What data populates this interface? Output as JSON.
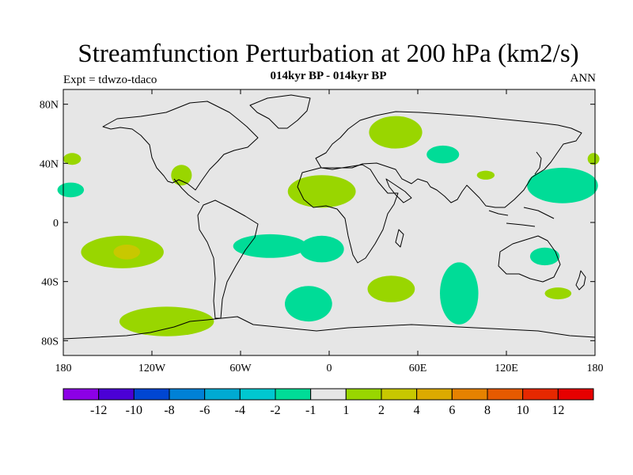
{
  "title": "Streamfunction Perturbation at 200 hPa (km2/s)",
  "subtitle": "014kyr BP - 014kyr BP",
  "left_label": "Expt = tdwzo-tdaco",
  "right_label": "ANN",
  "map": {
    "projection": "cylindrical-equidistant",
    "lon_range": [
      -180,
      180
    ],
    "lat_range": [
      -90,
      90
    ],
    "lat_ticks": [
      {
        "value": 80,
        "label": "80N"
      },
      {
        "value": 40,
        "label": "40N"
      },
      {
        "value": 0,
        "label": "0"
      },
      {
        "value": -40,
        "label": "40S"
      },
      {
        "value": -80,
        "label": "80S"
      }
    ],
    "lon_ticks": [
      {
        "value": -180,
        "label": "180"
      },
      {
        "value": -120,
        "label": "120W"
      },
      {
        "value": -60,
        "label": "60W"
      },
      {
        "value": 0,
        "label": "0"
      },
      {
        "value": 60,
        "label": "60E"
      },
      {
        "value": 120,
        "label": "120E"
      },
      {
        "value": 180,
        "label": "180"
      }
    ],
    "background_color": "#e6e6e6",
    "features": [
      {
        "lon": -174,
        "lat": 43,
        "rx": 6,
        "ry": 4,
        "level": "1 to 2",
        "color": "#99d600"
      },
      {
        "lon": -175,
        "lat": 22,
        "rx": 9,
        "ry": 5,
        "level": "-2 to -1",
        "color": "#00dc97"
      },
      {
        "lon": -100,
        "lat": 32,
        "rx": 7,
        "ry": 7,
        "level": "1 to 2",
        "color": "#99d600"
      },
      {
        "lon": -140,
        "lat": -20,
        "rx": 28,
        "ry": 11,
        "level": "1 to 2",
        "color": "#99d600"
      },
      {
        "lon": -137,
        "lat": -20,
        "rx": 9,
        "ry": 5,
        "level": "2 to 4",
        "color": "#c8c800"
      },
      {
        "lon": -110,
        "lat": -67,
        "rx": 32,
        "ry": 10,
        "level": "1 to 2",
        "color": "#99d600"
      },
      {
        "lon": -5,
        "lat": 21,
        "rx": 23,
        "ry": 11,
        "level": "1 to 2",
        "color": "#99d600"
      },
      {
        "lon": -40,
        "lat": -16,
        "rx": 25,
        "ry": 8,
        "level": "-2 to -1",
        "color": "#00dc97"
      },
      {
        "lon": -5,
        "lat": -18,
        "rx": 15,
        "ry": 9,
        "level": "-2 to -1",
        "color": "#00dc97"
      },
      {
        "lon": -14,
        "lat": -55,
        "rx": 16,
        "ry": 12,
        "level": "-2 to -1",
        "color": "#00dc97"
      },
      {
        "lon": 42,
        "lat": -45,
        "rx": 16,
        "ry": 9,
        "level": "1 to 2",
        "color": "#99d600"
      },
      {
        "lon": 45,
        "lat": 61,
        "rx": 18,
        "ry": 11,
        "level": "1 to 2",
        "color": "#99d600"
      },
      {
        "lon": 77,
        "lat": 46,
        "rx": 11,
        "ry": 6,
        "level": "-2 to -1",
        "color": "#00dc97"
      },
      {
        "lon": 106,
        "lat": 32,
        "rx": 6,
        "ry": 3,
        "level": "1 to 2",
        "color": "#99d600"
      },
      {
        "lon": 158,
        "lat": 25,
        "rx": 24,
        "ry": 12,
        "level": "-2 to -1",
        "color": "#00dc97"
      },
      {
        "lon": 179,
        "lat": 43,
        "rx": 4,
        "ry": 4,
        "level": "1 to 2",
        "color": "#99d600"
      },
      {
        "lon": 88,
        "lat": -48,
        "rx": 13,
        "ry": 21,
        "level": "-2 to -1",
        "color": "#00dc97"
      },
      {
        "lon": 146,
        "lat": -23,
        "rx": 10,
        "ry": 6,
        "level": "-2 to -1",
        "color": "#00dc97"
      },
      {
        "lon": 155,
        "lat": -48,
        "rx": 9,
        "ry": 4,
        "level": "1 to 2",
        "color": "#99d600"
      }
    ]
  },
  "colorbar": {
    "colors": [
      "#8c00e6",
      "#4b00d6",
      "#0046d2",
      "#0081d6",
      "#00aad2",
      "#00c8d0",
      "#00dc97",
      "#e6e6e6",
      "#99d600",
      "#c8c800",
      "#dcaa00",
      "#e68200",
      "#e65a00",
      "#e62800",
      "#e60000"
    ],
    "labels": [
      "-12",
      "-10",
      "-8",
      "-6",
      "-4",
      "-2",
      "-1",
      "1",
      "2",
      "4",
      "6",
      "8",
      "10",
      "12"
    ]
  }
}
